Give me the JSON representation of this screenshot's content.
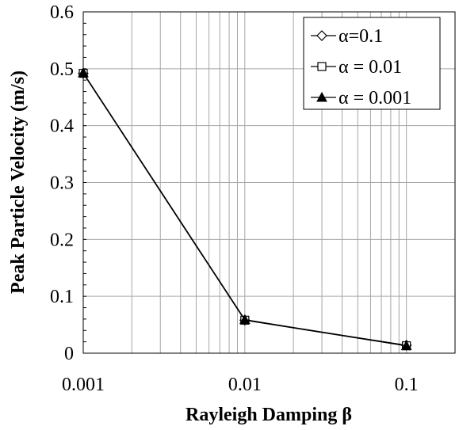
{
  "chart_data": {
    "type": "line",
    "xlabel": "Rayleigh Damping β",
    "ylabel": "Peak Particle Velocity (m/s)",
    "xscale": "log",
    "xlim": [
      0.001,
      0.2
    ],
    "ylim": [
      0,
      0.6
    ],
    "xticks": [
      0.001,
      0.01,
      0.1
    ],
    "xtick_labels": [
      "0.001",
      "0.01",
      "0.1"
    ],
    "yticks": [
      0,
      0.1,
      0.2,
      0.3,
      0.4,
      0.5,
      0.6
    ],
    "ytick_labels": [
      "0",
      "0.1",
      "0.2",
      "0.3",
      "0.4",
      "0.5",
      "0.6"
    ],
    "grid": true,
    "legend_position": "top-right",
    "x": [
      0.001,
      0.01,
      0.1
    ],
    "series": [
      {
        "name": "α=0.1",
        "marker": "diamond-open",
        "values": [
          0.492,
          0.058,
          0.014
        ]
      },
      {
        "name": "α = 0.01",
        "marker": "square-open",
        "values": [
          0.492,
          0.058,
          0.013
        ]
      },
      {
        "name": "α = 0.001",
        "marker": "triangle-filled",
        "values": [
          0.493,
          0.059,
          0.013
        ]
      }
    ]
  }
}
